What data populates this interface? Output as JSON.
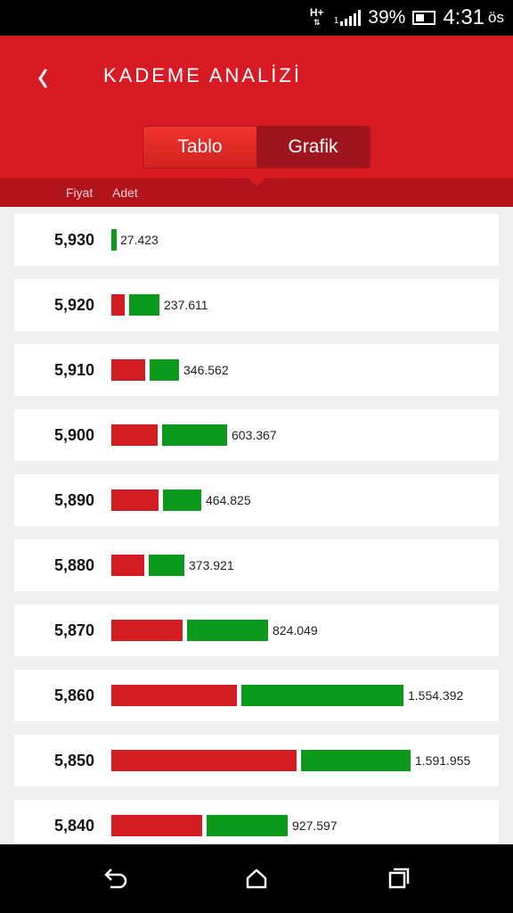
{
  "status_bar": {
    "network": "H+",
    "sim": "1",
    "battery": "39%",
    "time": "4:31",
    "ampm": "ös"
  },
  "header": {
    "title": "KADEME ANALİZİ",
    "back_icon": "chevron-left-icon"
  },
  "tabs": {
    "table_label": "Tablo",
    "chart_label": "Grafik",
    "active": "Grafik"
  },
  "columns": {
    "price": "Fiyat",
    "quantity": "Adet"
  },
  "colors": {
    "header": "#d81a24",
    "sell": "#d41d22",
    "buy": "#0c9a1c"
  },
  "rows": [
    {
      "price": "5,930",
      "quantity": "27.423"
    },
    {
      "price": "5,920",
      "quantity": "237.611"
    },
    {
      "price": "5,910",
      "quantity": "346.562"
    },
    {
      "price": "5,900",
      "quantity": "603.367"
    },
    {
      "price": "5,890",
      "quantity": "464.825"
    },
    {
      "price": "5,880",
      "quantity": "373.921"
    },
    {
      "price": "5,870",
      "quantity": "824.049"
    },
    {
      "price": "5,860",
      "quantity": "1.554.392"
    },
    {
      "price": "5,850",
      "quantity": "1.591.955"
    },
    {
      "price": "5,840",
      "quantity": "927.597"
    }
  ],
  "nav": [
    "back-icon",
    "home-icon",
    "recents-icon"
  ]
}
